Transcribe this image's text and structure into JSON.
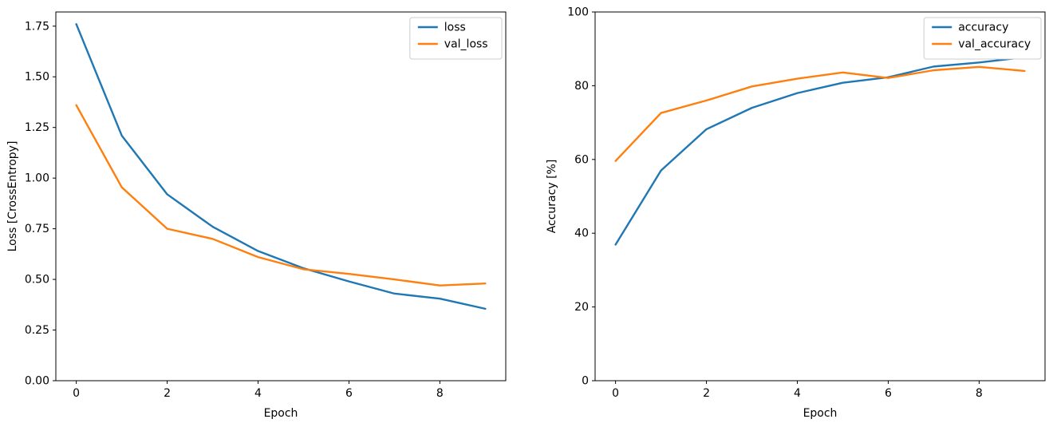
{
  "figure": {
    "background": "#ffffff",
    "axis_color": "#000000",
    "legend_border_color": "#cccccc",
    "legend_background": "#ffffff"
  },
  "chart_data": [
    {
      "type": "line",
      "title": "",
      "xlabel": "Epoch",
      "ylabel": "Loss [CrossEntropy]",
      "xlim": [
        -0.45,
        9.45
      ],
      "ylim": [
        0,
        1.82
      ],
      "xticks": [
        0,
        2,
        4,
        6,
        8
      ],
      "xtick_labels": [
        "0",
        "2",
        "4",
        "6",
        "8"
      ],
      "yticks": [
        0.0,
        0.25,
        0.5,
        0.75,
        1.0,
        1.25,
        1.5,
        1.75
      ],
      "ytick_labels": [
        "0.00",
        "0.25",
        "0.50",
        "0.75",
        "1.00",
        "1.25",
        "1.50",
        "1.75"
      ],
      "grid": false,
      "legend_position": "upper right",
      "x": [
        0,
        1,
        2,
        3,
        4,
        5,
        6,
        7,
        8,
        9
      ],
      "series": [
        {
          "name": "loss",
          "color": "#1f77b4",
          "values": [
            1.76,
            1.21,
            0.92,
            0.76,
            0.64,
            0.555,
            0.49,
            0.43,
            0.405,
            0.355
          ]
        },
        {
          "name": "val_loss",
          "color": "#ff7f0e",
          "values": [
            1.36,
            0.955,
            0.75,
            0.7,
            0.61,
            0.55,
            0.527,
            0.5,
            0.47,
            0.48
          ]
        }
      ]
    },
    {
      "type": "line",
      "title": "",
      "xlabel": "Epoch",
      "ylabel": "Accuracy [%]",
      "xlim": [
        -0.45,
        9.45
      ],
      "ylim": [
        0,
        100
      ],
      "xticks": [
        0,
        2,
        4,
        6,
        8
      ],
      "xtick_labels": [
        "0",
        "2",
        "4",
        "6",
        "8"
      ],
      "yticks": [
        0,
        20,
        40,
        60,
        80,
        100
      ],
      "ytick_labels": [
        "0",
        "20",
        "40",
        "60",
        "80",
        "100"
      ],
      "grid": false,
      "legend_position": "upper right",
      "x": [
        0,
        1,
        2,
        3,
        4,
        5,
        6,
        7,
        8,
        9
      ],
      "series": [
        {
          "name": "accuracy",
          "color": "#1f77b4",
          "values": [
            36.9,
            57.0,
            68.2,
            74.0,
            78.0,
            80.8,
            82.3,
            85.2,
            86.3,
            87.7
          ]
        },
        {
          "name": "val_accuracy",
          "color": "#ff7f0e",
          "values": [
            59.6,
            72.6,
            76.0,
            79.8,
            81.9,
            83.6,
            82.1,
            84.2,
            85.1,
            84.0
          ]
        }
      ]
    }
  ]
}
